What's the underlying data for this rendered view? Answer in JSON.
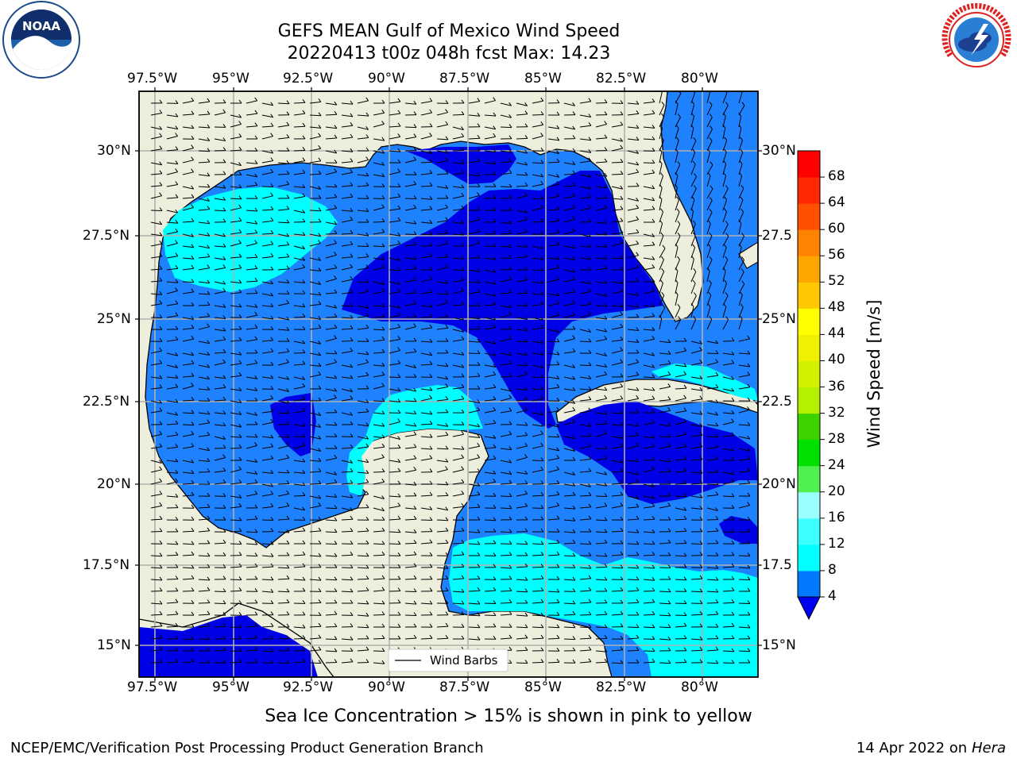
{
  "title": {
    "line1": "GEFS MEAN Gulf of Mexico Wind Speed",
    "line2": "20220413 t00z 048h fcst   Max: 14.23"
  },
  "lon_labels": [
    "97.5°W",
    "95°W",
    "92.5°W",
    "90°W",
    "87.5°W",
    "85°W",
    "82.5°W",
    "80°W"
  ],
  "lat_labels": [
    "30°N",
    "27.5°N",
    "25°N",
    "22.5°N",
    "20°N",
    "17.5°N",
    "15°N"
  ],
  "legend": {
    "label": "Wind Barbs"
  },
  "colorbar": {
    "label": "Wind Speed [m/s]",
    "ticks": [
      "4",
      "8",
      "12",
      "16",
      "20",
      "24",
      "28",
      "32",
      "36",
      "40",
      "44",
      "48",
      "52",
      "56",
      "60",
      "64",
      "68"
    ],
    "colors": [
      "#0000f0",
      "#0078ff",
      "#00ffff",
      "#3cffff",
      "#9bffff",
      "#50f050",
      "#00e000",
      "#3cd200",
      "#b4f000",
      "#d2f000",
      "#f0f000",
      "#ffff00",
      "#ffc800",
      "#ffa500",
      "#ff8200",
      "#ff5000",
      "#ff2800",
      "#ff0000"
    ]
  },
  "note": "Sea Ice Concentration > 15% is shown in pink to yellow",
  "footer": {
    "left": "NCEP/EMC/Verification Post Processing Product Generation Branch",
    "date": "14 Apr 2022 on",
    "machine": "Hera"
  },
  "logos": {
    "noaa": "NOAA",
    "nws": "NATIONAL WEATHER SERVICE"
  },
  "colors": {
    "land": "#eeeedc",
    "speed_4_8": "#1e82ff",
    "speed_0_4": "#0000e6",
    "speed_8_12": "#00ffff"
  }
}
